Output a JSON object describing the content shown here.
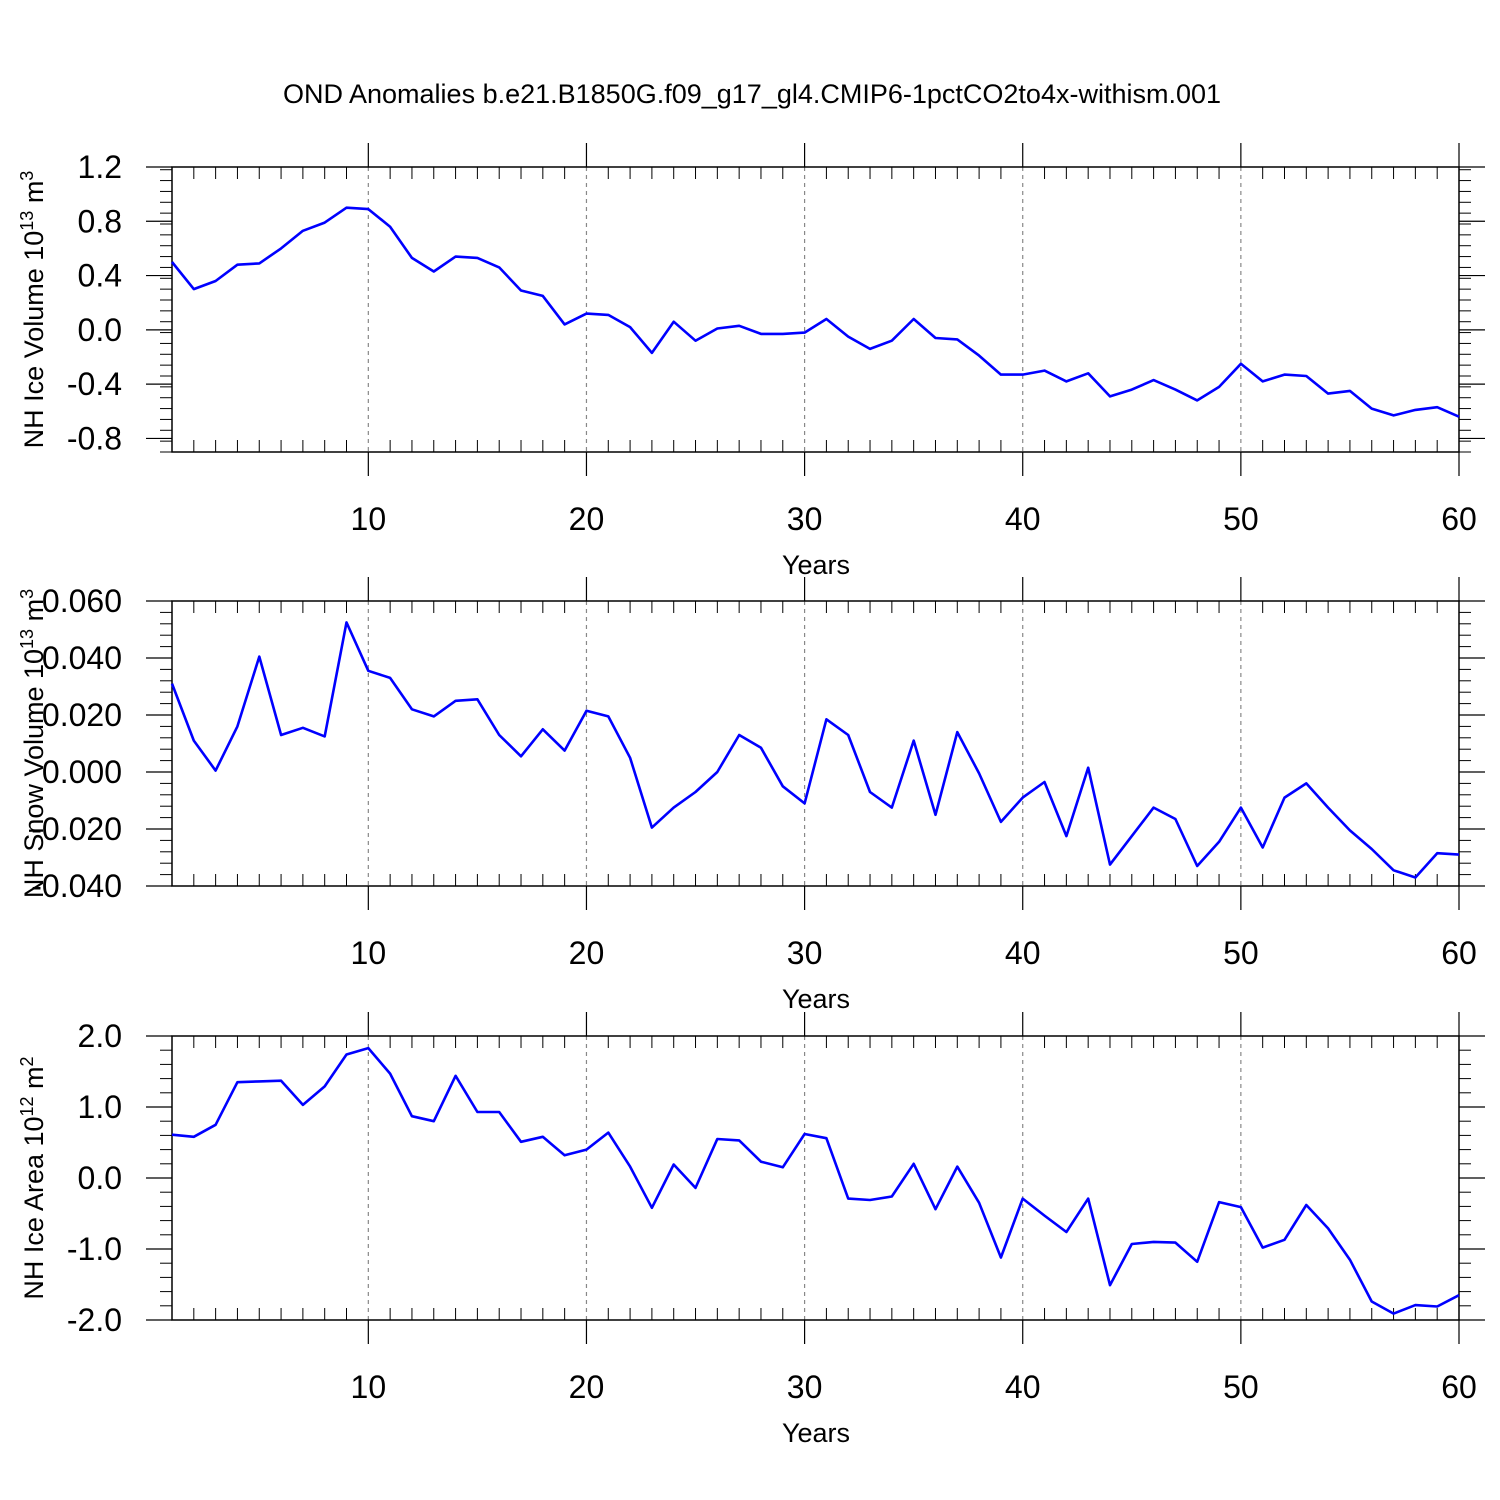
{
  "title": "OND Anomalies b.e21.B1850G.f09_g17_gl4.CMIP6-1pctCO2to4x-withism.001",
  "colors": {
    "line": "#0000ff",
    "axis": "#000000",
    "grid": "#888888"
  },
  "chart_data": [
    {
      "type": "line",
      "ylabel_base": "NH Ice Volume 10",
      "ylabel_exp": "13",
      "ylabel_unit": " m",
      "ylabel_unit_exp": "3",
      "xlabel": "Years",
      "xlim": [
        1,
        60
      ],
      "ylim": [
        -0.9,
        1.2
      ],
      "xticks": [
        10,
        20,
        30,
        40,
        50,
        60
      ],
      "xtick_labels": [
        "10",
        "20",
        "30",
        "40",
        "50",
        "60"
      ],
      "yticks": [
        -0.8,
        -0.4,
        0.0,
        0.4,
        0.8,
        1.2
      ],
      "ytick_labels": [
        "-0.8",
        "-0.4",
        "0.0",
        "0.4",
        "0.8",
        "1.2"
      ],
      "grid": "vertical dashed at x ticks",
      "series": [
        {
          "name": "NH Ice Volume",
          "x": [
            1,
            2,
            3,
            4,
            5,
            6,
            7,
            8,
            9,
            10,
            11,
            12,
            13,
            14,
            15,
            16,
            17,
            18,
            19,
            20,
            21,
            22,
            23,
            24,
            25,
            26,
            27,
            28,
            29,
            30,
            31,
            32,
            33,
            34,
            35,
            36,
            37,
            38,
            39,
            40,
            41,
            42,
            43,
            44,
            45,
            46,
            47,
            48,
            49,
            50,
            51,
            52,
            53,
            54,
            55,
            56,
            57,
            58,
            59,
            60
          ],
          "values": [
            0.5,
            0.3,
            0.36,
            0.48,
            0.49,
            0.6,
            0.73,
            0.79,
            0.9,
            0.89,
            0.76,
            0.53,
            0.43,
            0.54,
            0.53,
            0.46,
            0.29,
            0.25,
            0.04,
            0.12,
            0.11,
            0.02,
            -0.17,
            0.06,
            -0.08,
            0.01,
            0.03,
            -0.03,
            -0.03,
            -0.02,
            0.08,
            -0.05,
            -0.14,
            -0.08,
            0.08,
            -0.06,
            -0.07,
            -0.19,
            -0.33,
            -0.33,
            -0.3,
            -0.38,
            -0.32,
            -0.49,
            -0.44,
            -0.37,
            -0.44,
            -0.52,
            -0.42,
            -0.25,
            -0.38,
            -0.33,
            -0.34,
            -0.47,
            -0.45,
            -0.58,
            -0.63,
            -0.59,
            -0.57,
            -0.64
          ]
        }
      ]
    },
    {
      "type": "line",
      "ylabel_base": "NH Snow Volume 10",
      "ylabel_exp": "13",
      "ylabel_unit": " m",
      "ylabel_unit_exp": "3",
      "xlabel": "Years",
      "xlim": [
        1,
        60
      ],
      "ylim": [
        -0.04,
        0.06
      ],
      "xticks": [
        10,
        20,
        30,
        40,
        50,
        60
      ],
      "xtick_labels": [
        "10",
        "20",
        "30",
        "40",
        "50",
        "60"
      ],
      "yticks": [
        -0.04,
        -0.02,
        0.0,
        0.02,
        0.04,
        0.06
      ],
      "ytick_labels": [
        "-0.040",
        "-0.020",
        "0.000",
        "0.020",
        "0.040",
        "0.060"
      ],
      "grid": "vertical dashed at x ticks",
      "series": [
        {
          "name": "NH Snow Volume",
          "x": [
            1,
            2,
            3,
            4,
            5,
            6,
            7,
            8,
            9,
            10,
            11,
            12,
            13,
            14,
            15,
            16,
            17,
            18,
            19,
            20,
            21,
            22,
            23,
            24,
            25,
            26,
            27,
            28,
            29,
            30,
            31,
            32,
            33,
            34,
            35,
            36,
            37,
            38,
            39,
            40,
            41,
            42,
            43,
            44,
            45,
            46,
            47,
            48,
            49,
            50,
            51,
            52,
            53,
            54,
            55,
            56,
            57,
            58,
            59,
            60
          ],
          "values": [
            0.031,
            0.011,
            0.0005,
            0.016,
            0.0405,
            0.013,
            0.0155,
            0.0125,
            0.0525,
            0.0355,
            0.033,
            0.022,
            0.0195,
            0.025,
            0.0255,
            0.013,
            0.0055,
            0.015,
            0.0075,
            0.0215,
            0.0195,
            0.005,
            -0.0195,
            -0.0125,
            -0.007,
            0.0,
            0.013,
            0.0085,
            -0.005,
            -0.011,
            0.0185,
            0.013,
            -0.007,
            -0.0125,
            0.011,
            -0.015,
            0.014,
            -0.0005,
            -0.0175,
            -0.009,
            -0.0035,
            -0.0225,
            0.0015,
            -0.0325,
            -0.0225,
            -0.0125,
            -0.0165,
            -0.033,
            -0.0245,
            -0.0125,
            -0.0265,
            -0.009,
            -0.004,
            -0.0125,
            -0.0205,
            -0.027,
            -0.0345,
            -0.037,
            -0.0285,
            -0.029
          ]
        }
      ]
    },
    {
      "type": "line",
      "ylabel_base": "NH Ice Area 10",
      "ylabel_exp": "12",
      "ylabel_unit": " m",
      "ylabel_unit_exp": "2",
      "xlabel": "Years",
      "xlim": [
        1,
        60
      ],
      "ylim": [
        -2.0,
        2.0
      ],
      "xticks": [
        10,
        20,
        30,
        40,
        50,
        60
      ],
      "xtick_labels": [
        "10",
        "20",
        "30",
        "40",
        "50",
        "60"
      ],
      "yticks": [
        -2.0,
        -1.0,
        0.0,
        1.0,
        2.0
      ],
      "ytick_labels": [
        "-2.0",
        "-1.0",
        "0.0",
        "1.0",
        "2.0"
      ],
      "grid": "vertical dashed at x ticks",
      "series": [
        {
          "name": "NH Ice Area",
          "x": [
            1,
            2,
            3,
            4,
            5,
            6,
            7,
            8,
            9,
            10,
            11,
            12,
            13,
            14,
            15,
            16,
            17,
            18,
            19,
            20,
            21,
            22,
            23,
            24,
            25,
            26,
            27,
            28,
            29,
            30,
            31,
            32,
            33,
            34,
            35,
            36,
            37,
            38,
            39,
            40,
            41,
            42,
            43,
            44,
            45,
            46,
            47,
            48,
            49,
            50,
            51,
            52,
            53,
            54,
            55,
            56,
            57,
            58,
            59,
            60
          ],
          "values": [
            0.61,
            0.58,
            0.75,
            1.35,
            1.36,
            1.37,
            1.03,
            1.29,
            1.74,
            1.83,
            1.47,
            0.87,
            0.8,
            1.44,
            0.93,
            0.93,
            0.51,
            0.58,
            0.32,
            0.4,
            0.64,
            0.16,
            -0.42,
            0.19,
            -0.14,
            0.55,
            0.53,
            0.23,
            0.15,
            0.62,
            0.56,
            -0.29,
            -0.31,
            -0.26,
            0.2,
            -0.44,
            0.16,
            -0.35,
            -1.12,
            -0.29,
            -0.53,
            -0.76,
            -0.29,
            -1.51,
            -0.93,
            -0.9,
            -0.91,
            -1.18,
            -0.34,
            -0.41,
            -0.98,
            -0.87,
            -0.38,
            -0.71,
            -1.15,
            -1.74,
            -1.91,
            -1.79,
            -1.81,
            -1.65
          ]
        }
      ]
    }
  ]
}
